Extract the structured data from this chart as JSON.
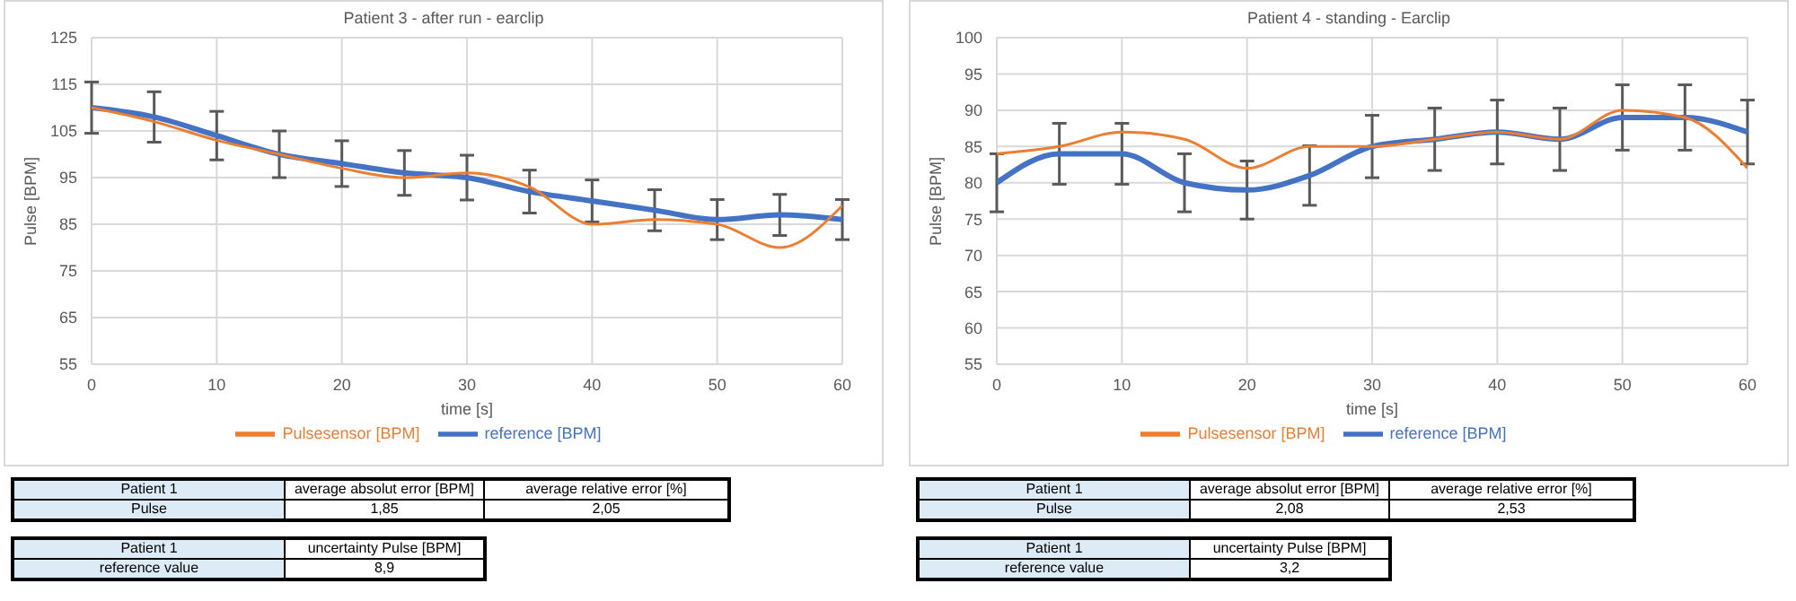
{
  "chart_data": [
    {
      "type": "line",
      "title": "Patient 3 - after run - earclip",
      "xlabel": "time [s]",
      "ylabel": "Pulse [BPM]",
      "x": [
        0,
        5,
        10,
        15,
        20,
        25,
        30,
        35,
        40,
        45,
        50,
        55,
        60
      ],
      "series": [
        {
          "name": "reference [BPM]",
          "color": "#4472c4",
          "values": [
            110,
            108,
            104,
            100,
            98,
            96,
            95,
            92,
            90,
            88,
            86,
            87,
            86
          ],
          "errors": [
            5.5,
            5.4,
            5.2,
            5,
            4.9,
            4.8,
            4.8,
            4.6,
            4.5,
            4.4,
            4.3,
            4.4,
            4.3
          ]
        },
        {
          "name": "Pulsesensor [BPM]",
          "color": "#ed7d31",
          "values": [
            110,
            107,
            103,
            100,
            97,
            95,
            96,
            93,
            85,
            86,
            85,
            80,
            89
          ]
        }
      ],
      "xlim": [
        0,
        60
      ],
      "xticks": [
        0,
        10,
        20,
        30,
        40,
        50,
        60
      ],
      "ylim": [
        55,
        125
      ],
      "yticks": [
        55,
        65,
        75,
        85,
        95,
        105,
        115,
        125
      ],
      "grid": true,
      "legend": "bottom",
      "marker": "none",
      "line_style": "solid",
      "annotations": [
        "Patient 1",
        "average absolut error [BPM]",
        "average relative error [%]",
        "Pulse",
        "1,85",
        "2,05",
        "Patient 1",
        "uncertainty Pulse [BPM]",
        "reference value",
        "8,9"
      ]
    },
    {
      "type": "line",
      "title": "Patient 4 - standing - Earclip",
      "xlabel": "time [s]",
      "ylabel": "Pulse [BPM]",
      "x": [
        0,
        5,
        10,
        15,
        20,
        25,
        30,
        35,
        40,
        45,
        50,
        55,
        60
      ],
      "series": [
        {
          "name": "reference [BPM]",
          "color": "#4472c4",
          "values": [
            80,
            84,
            84,
            80,
            79,
            81,
            85,
            86,
            87,
            86,
            89,
            89,
            87
          ],
          "errors": [
            4,
            4.2,
            4.2,
            4,
            4,
            4.1,
            4.3,
            4.3,
            4.4,
            4.3,
            4.5,
            4.5,
            4.4
          ]
        },
        {
          "name": "Pulsesensor [BPM]",
          "color": "#ed7d31",
          "values": [
            84,
            85,
            87,
            86,
            82,
            85,
            85,
            86,
            87,
            86,
            90,
            89,
            82
          ]
        }
      ],
      "xlim": [
        0,
        60
      ],
      "xticks": [
        0,
        10,
        20,
        30,
        40,
        50,
        60
      ],
      "ylim": [
        55,
        100
      ],
      "yticks": [
        55,
        60,
        65,
        70,
        75,
        80,
        85,
        90,
        95,
        100
      ],
      "grid": true,
      "legend": "bottom",
      "marker": "none",
      "line_style": "solid",
      "annotations": [
        "Patient 1",
        "average absolut error [BPM]",
        "average relative error [%]",
        "Pulse",
        "2,08",
        "2,53",
        "Patient 1",
        "uncertainty Pulse [BPM]",
        "reference value",
        "3,2"
      ]
    }
  ]
}
